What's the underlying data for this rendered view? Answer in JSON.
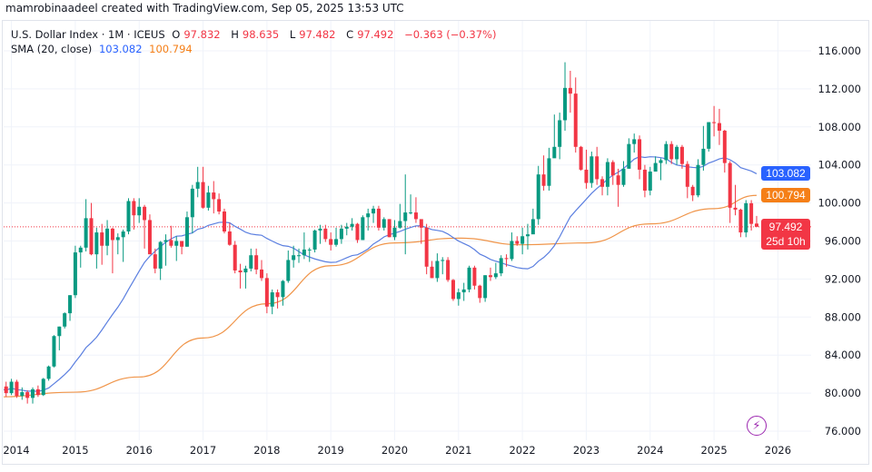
{
  "credit": "mamrobinaadeel created with TradingView.com, Sep 05, 2025 13:53 UTC",
  "legend": {
    "symbol": "U.S. Dollar Index · 1M · ICEUS",
    "o_label": "O",
    "o": "97.832",
    "h_label": "H",
    "h": "98.635",
    "l_label": "L",
    "l": "97.482",
    "c_label": "C",
    "c": "97.492",
    "change": "−0.363 (−0.37%)",
    "sma_label": "SMA (20, close)",
    "sma_blue": "103.082",
    "sma_orange": "100.794"
  },
  "price_tags": {
    "sma_blue": "103.082",
    "sma_orange": "100.794",
    "last": "97.492",
    "countdown": "25d 10h"
  },
  "colors": {
    "up": "#089981",
    "down": "#f23645",
    "sma_blue": "#5b7fe0",
    "sma_orange": "#f0954a",
    "last": "#f23645"
  },
  "icons": {
    "bolt": "lightning-icon"
  },
  "chart_data": {
    "type": "candlestick",
    "interval": "1M",
    "start": "2013-10",
    "yticks": [
      "116.000",
      "112.000",
      "108.000",
      "104.000",
      "100.000",
      "96.000",
      "92.000",
      "88.000",
      "84.000",
      "80.000",
      "76.000"
    ],
    "ylim": [
      76,
      116
    ],
    "xticks": [
      "2014",
      "2015",
      "2016",
      "2017",
      "2018",
      "2019",
      "2020",
      "2021",
      "2022",
      "2023",
      "2024",
      "2025",
      "2026"
    ],
    "grid": true,
    "open": [
      80.5,
      80.2,
      80.7,
      80.0,
      81.2,
      79.7,
      80.1,
      79.5,
      80.4,
      79.8,
      81.5,
      82.8,
      86.0,
      87.0,
      88.4,
      90.3,
      94.8,
      95.3,
      98.4,
      94.6,
      96.9,
      95.5,
      97.3,
      96.1,
      96.4,
      97.0,
      100.2,
      98.7,
      99.6,
      98.2,
      94.6,
      93.1,
      95.9,
      96.1,
      95.5,
      96.0,
      95.4,
      98.5,
      101.5,
      102.2,
      99.5,
      101.1,
      100.4,
      99.1,
      97.0,
      95.6,
      92.9,
      92.7,
      93.1,
      94.5,
      93.0,
      92.1,
      89.1,
      90.6,
      90.1,
      91.8,
      94.0,
      94.5,
      94.5,
      95.1,
      95.1,
      97.1,
      97.3,
      96.2,
      95.6,
      96.2,
      97.3,
      97.5,
      97.8,
      96.1,
      98.5,
      98.9,
      99.4,
      97.4,
      98.3,
      96.4,
      97.4,
      98.1,
      99.0,
      99.0,
      98.3,
      97.4,
      93.3,
      92.1,
      93.9,
      94.0,
      91.9,
      89.9,
      90.6,
      90.9,
      93.2,
      91.3,
      90.0,
      92.4,
      92.2,
      92.6,
      94.2,
      94.1,
      96.0,
      95.7,
      96.5,
      96.7,
      98.3,
      103.0,
      101.8,
      104.7,
      105.9,
      108.7,
      112.1,
      111.5,
      105.9,
      103.5,
      102.1,
      104.9,
      102.5,
      101.7,
      104.3,
      102.9,
      101.9,
      103.6,
      106.2,
      106.7,
      103.5,
      101.3,
      103.3,
      104.2,
      104.5,
      106.2,
      104.6,
      105.9,
      104.1,
      101.7,
      100.8,
      104.0,
      105.7,
      108.5,
      108.4,
      107.6,
      104.2,
      99.5,
      99.3,
      96.9,
      99.97,
      97.832
    ],
    "high": [
      81.0,
      81.5,
      81.2,
      81.5,
      81.4,
      80.6,
      80.3,
      80.6,
      80.8,
      81.6,
      82.9,
      86.1,
      87.0,
      88.5,
      90.3,
      95.5,
      95.5,
      100.4,
      100.0,
      97.4,
      97.8,
      98.2,
      97.4,
      96.8,
      97.2,
      100.5,
      100.5,
      100.5,
      99.8,
      98.8,
      95.2,
      96.0,
      96.7,
      97.6,
      96.5,
      96.0,
      99.1,
      101.9,
      103.8,
      103.8,
      101.8,
      102.3,
      101.0,
      99.4,
      97.9,
      96.0,
      93.6,
      93.4,
      95.2,
      95.2,
      94.0,
      92.6,
      90.9,
      90.9,
      91.9,
      95.0,
      95.5,
      95.2,
      96.9,
      95.3,
      97.2,
      97.7,
      97.7,
      96.9,
      97.4,
      97.7,
      97.9,
      98.4,
      97.9,
      98.7,
      99.4,
      99.7,
      99.7,
      98.5,
      98.3,
      98.2,
      99.9,
      103.0,
      100.9,
      100.6,
      98.2,
      97.8,
      93.9,
      94.7,
      94.3,
      94.3,
      92.0,
      91.0,
      91.6,
      93.4,
      93.4,
      91.4,
      92.4,
      93.2,
      93.7,
      94.5,
      94.6,
      96.9,
      96.5,
      97.4,
      97.8,
      99.4,
      103.9,
      105.0,
      105.8,
      109.3,
      109.5,
      114.8,
      113.9,
      113.2,
      106.0,
      105.6,
      105.4,
      105.9,
      102.8,
      104.7,
      104.5,
      103.6,
      104.4,
      106.8,
      107.3,
      107.1,
      104.0,
      103.8,
      104.9,
      104.7,
      106.5,
      106.5,
      106.1,
      106.1,
      104.4,
      101.9,
      104.6,
      108.1,
      108.5,
      110.2,
      109.9,
      107.7,
      104.4,
      101.9,
      99.4,
      100.3,
      100.3,
      98.635
    ],
    "low": [
      79.6,
      79.9,
      79.6,
      79.8,
      79.5,
      79.3,
      78.9,
      78.9,
      79.6,
      79.7,
      81.3,
      82.7,
      84.5,
      86.8,
      87.6,
      90.0,
      93.2,
      94.9,
      94.5,
      93.1,
      93.5,
      94.5,
      92.6,
      94.6,
      93.8,
      96.7,
      97.2,
      97.9,
      95.2,
      94.6,
      92.6,
      91.9,
      93.4,
      95.3,
      93.9,
      94.6,
      95.4,
      96.8,
      100.6,
      99.4,
      99.2,
      98.9,
      98.8,
      96.8,
      95.5,
      92.6,
      91.0,
      91.0,
      92.8,
      92.5,
      91.8,
      88.4,
      88.3,
      88.9,
      89.2,
      91.6,
      93.2,
      93.7,
      94.1,
      93.8,
      94.8,
      95.7,
      95.9,
      95.0,
      95.4,
      95.7,
      96.6,
      97.1,
      95.8,
      96.1,
      97.1,
      97.9,
      97.1,
      97.1,
      96.4,
      96.1,
      97.3,
      94.6,
      98.8,
      97.9,
      95.7,
      92.5,
      92.1,
      91.7,
      92.5,
      91.7,
      89.7,
      89.2,
      89.7,
      90.6,
      90.9,
      89.5,
      89.6,
      91.8,
      92.0,
      92.3,
      93.3,
      93.9,
      95.5,
      94.6,
      95.1,
      97.0,
      97.7,
      101.3,
      101.3,
      104.9,
      104.6,
      107.6,
      109.5,
      105.3,
      103.4,
      101.5,
      101.6,
      101.9,
      100.8,
      100.8,
      101.9,
      99.6,
      101.7,
      103.6,
      105.3,
      102.5,
      100.6,
      100.8,
      103.4,
      102.4,
      104.1,
      104.1,
      104.0,
      103.6,
      100.5,
      100.2,
      100.6,
      103.4,
      105.4,
      107.0,
      106.1,
      103.2,
      97.9,
      98.7,
      96.4,
      96.4,
      97.1,
      97.482
    ],
    "close": [
      80.2,
      80.7,
      80.0,
      81.2,
      79.7,
      80.1,
      79.5,
      80.4,
      79.8,
      81.5,
      82.8,
      86.0,
      87.0,
      88.4,
      90.3,
      94.8,
      95.3,
      98.4,
      94.6,
      96.9,
      95.5,
      97.3,
      96.1,
      96.4,
      97.0,
      100.2,
      98.7,
      99.6,
      98.2,
      94.6,
      93.1,
      95.9,
      96.1,
      95.5,
      96.0,
      95.4,
      98.5,
      101.5,
      102.2,
      99.5,
      101.1,
      100.4,
      99.1,
      97.0,
      95.6,
      92.9,
      92.7,
      93.1,
      94.5,
      93.0,
      92.1,
      89.1,
      90.6,
      90.1,
      91.8,
      94.0,
      94.5,
      94.5,
      95.1,
      95.1,
      97.1,
      97.3,
      96.2,
      95.6,
      96.2,
      97.3,
      97.5,
      97.8,
      96.1,
      98.5,
      98.9,
      99.4,
      97.4,
      98.3,
      96.4,
      97.4,
      98.1,
      99.0,
      99.0,
      98.3,
      97.4,
      93.3,
      92.1,
      93.9,
      94.0,
      91.9,
      89.9,
      90.6,
      90.9,
      93.2,
      91.3,
      90.0,
      92.4,
      92.2,
      92.6,
      94.2,
      94.1,
      96.0,
      95.7,
      96.5,
      96.7,
      98.3,
      103.0,
      101.8,
      104.7,
      105.9,
      108.7,
      112.1,
      111.5,
      105.9,
      103.5,
      102.1,
      104.9,
      102.5,
      101.7,
      104.3,
      102.9,
      101.9,
      103.6,
      106.2,
      106.7,
      103.5,
      101.3,
      103.3,
      104.2,
      104.5,
      106.2,
      104.6,
      105.9,
      104.1,
      101.7,
      100.8,
      104.0,
      105.7,
      108.5,
      108.4,
      107.6,
      104.2,
      99.5,
      99.3,
      96.9,
      99.97,
      97.8,
      97.492
    ],
    "orange_line": [
      {
        "date": "2013-10",
        "value": 79.6
      },
      {
        "date": "2015-01",
        "value": 80.1
      },
      {
        "date": "2016-01",
        "value": 81.7
      },
      {
        "date": "2017-01",
        "value": 85.8
      },
      {
        "date": "2018-01",
        "value": 89.4
      },
      {
        "date": "2019-01",
        "value": 93.4
      },
      {
        "date": "2020-01",
        "value": 95.8
      },
      {
        "date": "2021-01",
        "value": 96.3
      },
      {
        "date": "2022-01",
        "value": 95.6
      },
      {
        "date": "2023-01",
        "value": 95.8
      },
      {
        "date": "2024-01",
        "value": 97.8
      },
      {
        "date": "2025-01",
        "value": 99.4
      },
      {
        "date": "2025-09",
        "value": 100.794
      }
    ],
    "last_price": 97.492
  }
}
